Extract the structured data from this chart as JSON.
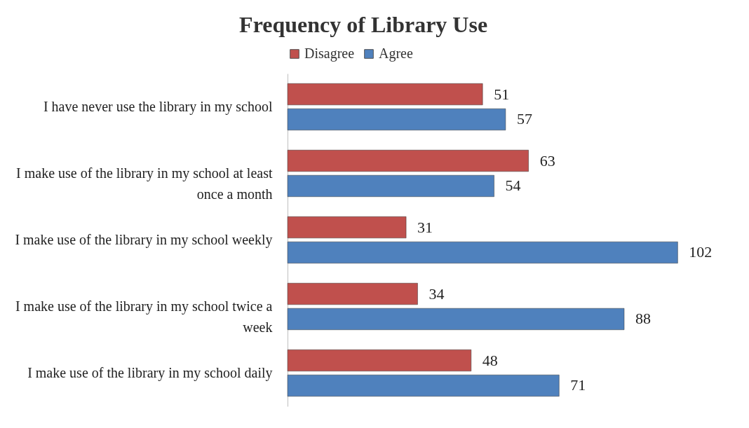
{
  "chart_data": {
    "type": "bar",
    "orientation": "horizontal",
    "title": "Frequency of Library Use",
    "categories": [
      "I have never use the library in my school",
      "I make use of the library in my school at least once a month",
      "I make use of the library in my school weekly",
      "I make use of the library in my school twice a week",
      "I make use of the library in my school daily"
    ],
    "series": [
      {
        "name": "Disagree",
        "color": "#c0504d",
        "values": [
          51,
          63,
          31,
          34,
          48
        ]
      },
      {
        "name": "Agree",
        "color": "#4f81bd",
        "values": [
          57,
          54,
          102,
          88,
          71
        ]
      }
    ],
    "data_labels": true,
    "legend": "top"
  }
}
